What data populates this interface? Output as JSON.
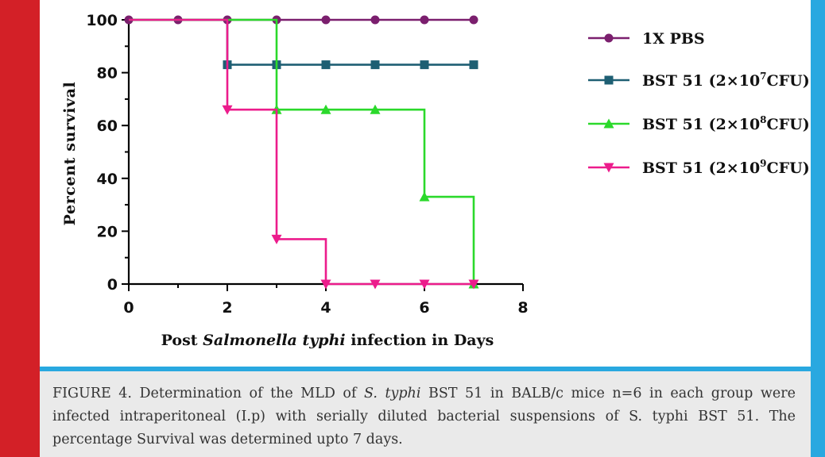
{
  "colors": {
    "left_bar": "#d32027",
    "frame_border": "#29a8e0",
    "caption_bg": "#eaeaea",
    "caption_text": "#333333"
  },
  "chart_data": {
    "type": "line",
    "subtype": "survival-step",
    "xlabel_parts": [
      "Post ",
      "Salmonella typhi",
      " infection in Days"
    ],
    "ylabel": "Percent survival",
    "xlim": [
      0,
      8
    ],
    "ylim": [
      0,
      100
    ],
    "x_ticks": [
      "0",
      "2",
      "4",
      "6",
      "8"
    ],
    "y_ticks": [
      "0",
      "20",
      "40",
      "60",
      "80",
      "100"
    ],
    "grid": false,
    "legend_position": "right",
    "series": [
      {
        "name": "1X PBS",
        "legend_parts": [
          "1X PBS",
          "",
          ""
        ],
        "color": "#7b1f6e",
        "marker": "circle",
        "steps": [
          [
            0,
            100
          ],
          [
            7,
            100
          ]
        ],
        "markers": [
          [
            0,
            100
          ],
          [
            1,
            100
          ],
          [
            2,
            100
          ],
          [
            3,
            100
          ],
          [
            4,
            100
          ],
          [
            5,
            100
          ],
          [
            6,
            100
          ],
          [
            7,
            100
          ]
        ]
      },
      {
        "name": "BST 51 (2×10^7CFU)",
        "legend_parts": [
          "BST 51 (2×10",
          "7",
          "CFU)"
        ],
        "color": "#1e5f73",
        "marker": "square",
        "steps": [
          [
            0,
            100
          ],
          [
            2,
            100
          ],
          [
            2,
            83
          ],
          [
            7,
            83
          ]
        ],
        "markers": [
          [
            2,
            83
          ],
          [
            3,
            83
          ],
          [
            4,
            83
          ],
          [
            5,
            83
          ],
          [
            6,
            83
          ],
          [
            7,
            83
          ]
        ]
      },
      {
        "name": "BST 51 (2×10^8CFU)",
        "legend_parts": [
          "BST 51 (2×10",
          "8",
          "CFU)"
        ],
        "color": "#2bd92b",
        "marker": "triangle-up",
        "steps": [
          [
            0,
            100
          ],
          [
            3,
            100
          ],
          [
            3,
            66
          ],
          [
            6,
            66
          ],
          [
            6,
            33
          ],
          [
            7,
            33
          ],
          [
            7,
            0
          ]
        ],
        "markers": [
          [
            3,
            66
          ],
          [
            4,
            66
          ],
          [
            5,
            66
          ],
          [
            6,
            33
          ],
          [
            7,
            0
          ]
        ]
      },
      {
        "name": "BST 51 (2×10^9CFU)",
        "legend_parts": [
          "BST 51 (2×10",
          "9",
          "CFU)"
        ],
        "color": "#ec1c8c",
        "marker": "triangle-down",
        "steps": [
          [
            0,
            100
          ],
          [
            2,
            100
          ],
          [
            2,
            66
          ],
          [
            3,
            66
          ],
          [
            3,
            17
          ],
          [
            4,
            17
          ],
          [
            4,
            0
          ],
          [
            7,
            0
          ]
        ],
        "markers": [
          [
            2,
            66
          ],
          [
            3,
            17
          ],
          [
            4,
            0
          ],
          [
            5,
            0
          ],
          [
            6,
            0
          ],
          [
            7,
            0
          ]
        ]
      }
    ]
  },
  "caption": {
    "lead": "FIGURE 4. Determination of the MLD of ",
    "organism_italic": "S. typhi",
    "rest": " BST 51 in BALB/c mice n=6 in each group were infected intraperitoneal (I.p) with serially diluted bacterial suspensions of S. typhi BST 51. The percentage Survival was determined upto 7 days."
  }
}
